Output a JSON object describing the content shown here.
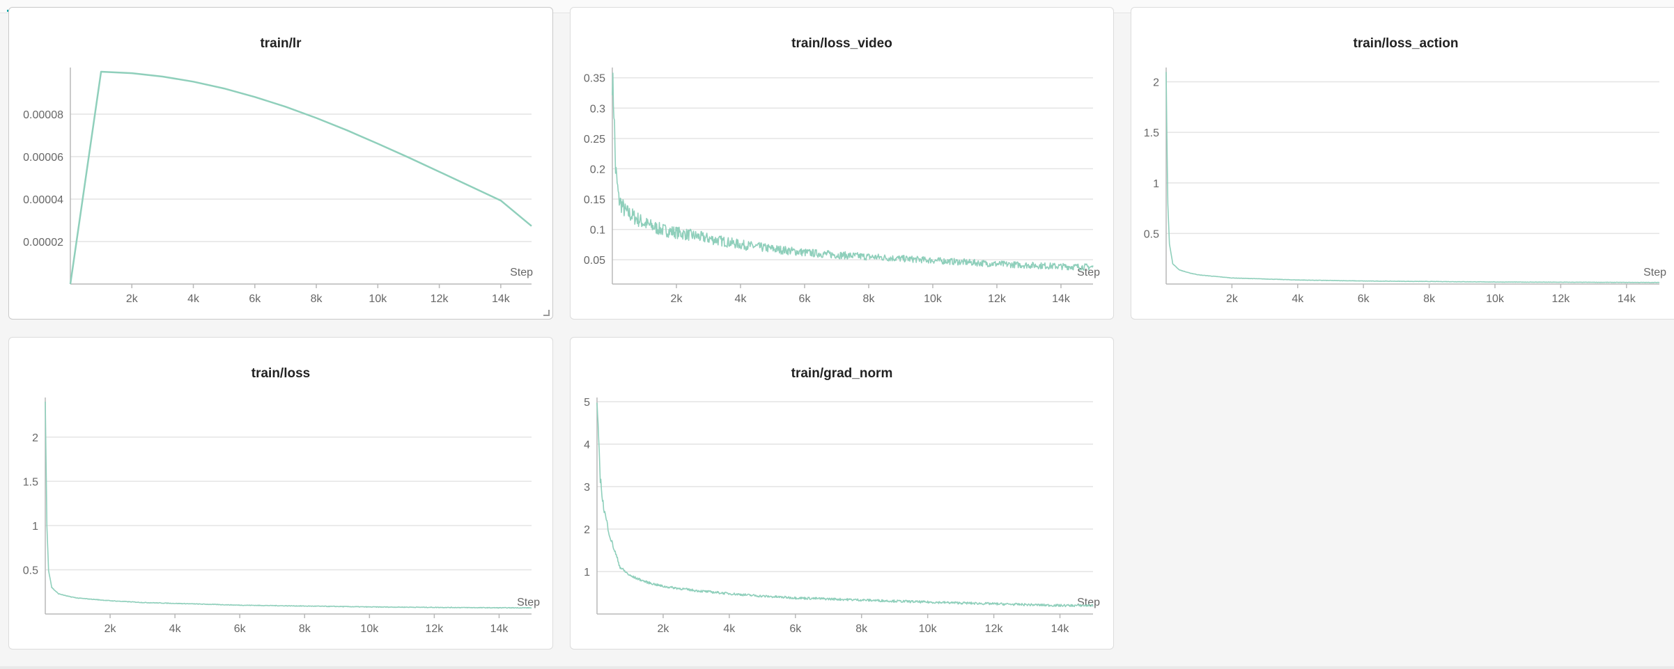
{
  "colors": {
    "line": "#8fcfbb",
    "grid": "#e4e4e4",
    "axis": "#b8b8b8",
    "tick": "#666666"
  },
  "charts": [
    {
      "id": "train-lr",
      "title": "train/lr",
      "xlabel": "Step",
      "xticks": [
        "2k",
        "4k",
        "6k",
        "8k",
        "10k",
        "12k",
        "14k"
      ],
      "yticks": [
        "0.00002",
        "0.00004",
        "0.00006",
        "0.00008"
      ]
    },
    {
      "id": "train-loss-video",
      "title": "train/loss_video",
      "xlabel": "Step",
      "xticks": [
        "2k",
        "4k",
        "6k",
        "8k",
        "10k",
        "12k",
        "14k"
      ],
      "yticks": [
        "0.05",
        "0.1",
        "0.15",
        "0.2",
        "0.25",
        "0.3",
        "0.35"
      ]
    },
    {
      "id": "train-loss-action",
      "title": "train/loss_action",
      "xlabel": "Step",
      "xticks": [
        "2k",
        "4k",
        "6k",
        "8k",
        "10k",
        "12k",
        "14k"
      ],
      "yticks": [
        "0.5",
        "1",
        "1.5",
        "2"
      ]
    },
    {
      "id": "train-loss",
      "title": "train/loss",
      "xlabel": "Step",
      "xticks": [
        "2k",
        "4k",
        "6k",
        "8k",
        "10k",
        "12k",
        "14k"
      ],
      "yticks": [
        "0.5",
        "1",
        "1.5",
        "2"
      ]
    },
    {
      "id": "train-grad-norm",
      "title": "train/grad_norm",
      "xlabel": "Step",
      "xticks": [
        "2k",
        "4k",
        "6k",
        "8k",
        "10k",
        "12k",
        "14k"
      ],
      "yticks": [
        "1",
        "2",
        "3",
        "4",
        "5"
      ]
    }
  ],
  "chart_data": [
    {
      "type": "line",
      "title": "train/lr",
      "xlabel": "Step",
      "ylabel": "",
      "xlim": [
        0,
        15000
      ],
      "ylim": [
        0,
        0.0001
      ],
      "x": [
        0,
        1000,
        2000,
        3000,
        4000,
        5000,
        6000,
        7000,
        8000,
        9000,
        10000,
        11000,
        12000,
        13000,
        14000,
        15000
      ],
      "series": [
        {
          "values": [
            0,
            0.0001,
            9.93e-05,
            9.77e-05,
            9.53e-05,
            9.21e-05,
            8.81e-05,
            8.35e-05,
            7.82e-05,
            7.24e-05,
            6.61e-05,
            5.96e-05,
            5.29e-05,
            4.61e-05,
            3.93e-05,
            2.73e-05
          ]
        }
      ]
    },
    {
      "type": "line",
      "title": "train/loss_video",
      "xlabel": "Step",
      "ylabel": "",
      "xlim": [
        0,
        15000
      ],
      "ylim": [
        0.01,
        0.36
      ],
      "x": [
        0,
        50,
        100,
        200,
        400,
        700,
        1000,
        1500,
        2000,
        3000,
        4000,
        5000,
        6000,
        7000,
        8000,
        9000,
        10000,
        11000,
        12000,
        13000,
        14000,
        15000
      ],
      "series": [
        {
          "values": [
            0.35,
            0.3,
            0.2,
            0.15,
            0.13,
            0.12,
            0.11,
            0.1,
            0.095,
            0.085,
            0.075,
            0.068,
            0.062,
            0.058,
            0.055,
            0.052,
            0.049,
            0.046,
            0.043,
            0.041,
            0.039,
            0.038
          ]
        }
      ]
    },
    {
      "type": "line",
      "title": "train/loss_action",
      "xlabel": "Step",
      "ylabel": "",
      "xlim": [
        0,
        15000
      ],
      "ylim": [
        0,
        2.1
      ],
      "x": [
        0,
        20,
        50,
        100,
        200,
        400,
        700,
        1000,
        2000,
        3000,
        4000,
        6000,
        8000,
        10000,
        12000,
        14000,
        15000
      ],
      "series": [
        {
          "values": [
            2.1,
            1.5,
            0.8,
            0.4,
            0.2,
            0.14,
            0.11,
            0.09,
            0.06,
            0.05,
            0.04,
            0.03,
            0.025,
            0.02,
            0.018,
            0.016,
            0.015
          ]
        }
      ]
    },
    {
      "type": "line",
      "title": "train/loss",
      "xlabel": "Step",
      "ylabel": "",
      "xlim": [
        0,
        15000
      ],
      "ylim": [
        0,
        2.4
      ],
      "x": [
        0,
        20,
        50,
        100,
        200,
        400,
        700,
        1000,
        2000,
        3000,
        4000,
        6000,
        8000,
        10000,
        12000,
        14000,
        15000
      ],
      "series": [
        {
          "values": [
            2.45,
            1.8,
            1.0,
            0.5,
            0.3,
            0.23,
            0.2,
            0.18,
            0.15,
            0.13,
            0.12,
            0.1,
            0.09,
            0.08,
            0.075,
            0.07,
            0.07
          ]
        }
      ]
    },
    {
      "type": "line",
      "title": "train/grad_norm",
      "xlabel": "Step",
      "ylabel": "",
      "xlim": [
        0,
        15000
      ],
      "ylim": [
        0,
        5
      ],
      "x": [
        0,
        50,
        100,
        200,
        400,
        700,
        1000,
        1500,
        2000,
        3000,
        4000,
        5000,
        6000,
        8000,
        10000,
        12000,
        14000,
        15000
      ],
      "series": [
        {
          "values": [
            5,
            4,
            3.2,
            2.5,
            1.8,
            1.1,
            0.9,
            0.75,
            0.65,
            0.55,
            0.48,
            0.42,
            0.38,
            0.33,
            0.28,
            0.24,
            0.2,
            0.2
          ]
        }
      ]
    }
  ]
}
